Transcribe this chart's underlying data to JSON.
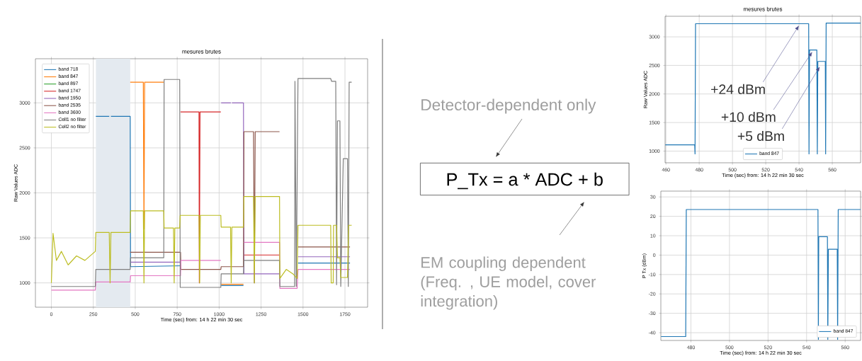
{
  "chart_data": [
    {
      "type": "line",
      "title": "mesures brutes",
      "xlabel": "Time (sec) from: 14 h 22 min 30 sec",
      "ylabel": "Raw Values ADC",
      "xlim": [
        -95,
        1885
      ],
      "ylim": [
        730,
        3490
      ],
      "xticks": [
        0,
        250,
        500,
        750,
        1000,
        1250,
        1500,
        1750
      ],
      "yticks": [
        1000,
        1500,
        2000,
        2500,
        3000
      ],
      "grid": true,
      "legend": "top left",
      "bands": [
        {
          "axis": "x",
          "from": 265,
          "to": 470,
          "color": "#e4eaf0"
        }
      ],
      "series": [
        {
          "name": "band 718",
          "color": "#1f77b4",
          "x": [
            265,
            345,
            350,
            355,
            470,
            472,
            770,
            772,
            1012,
            1145,
            1147,
            1470,
            1780
          ],
          "values": [
            2850,
            2850,
            null,
            2850,
            2850,
            1180,
            1190,
            null,
            970,
            970,
            null,
            1220,
            1220
          ]
        },
        {
          "name": "band 847",
          "color": "#ff7f0e",
          "x": [
            470,
            548,
            552,
            556,
            670,
            672,
            1012,
            1145
          ],
          "values": [
            3230,
            3230,
            1600,
            3230,
            3230,
            null,
            985,
            985
          ]
        },
        {
          "name": "band 897",
          "color": "#2ca02c"
        },
        {
          "name": "band 1747",
          "color": "#d62728",
          "x": [
            770,
            880,
            882,
            886,
            1010,
            1012,
            1148,
            1360
          ],
          "values": [
            2900,
            2900,
            1000,
            2900,
            2900,
            null,
            1310,
            1310
          ]
        },
        {
          "name": "band 1950",
          "color": "#9467bd",
          "x": [
            470,
            770,
            772,
            1012,
            1070,
            1072,
            1076,
            1145,
            1148,
            1360,
            1362,
            1470,
            1780
          ],
          "values": [
            1230,
            1230,
            null,
            3000,
            3000,
            null,
            3000,
            3000,
            1100,
            1100,
            null,
            1290,
            1290
          ]
        },
        {
          "name": "band 2535",
          "color": "#8c564b",
          "x": [
            470,
            770,
            772,
            1010,
            1012,
            1145,
            1148,
            1205,
            1210,
            1215,
            1360,
            1362,
            1470,
            1780
          ],
          "values": [
            1340,
            1340,
            1150,
            1150,
            1180,
            1180,
            2680,
            2680,
            1000,
            2680,
            2680,
            null,
            1400,
            1400
          ]
        },
        {
          "name": "band 3600",
          "color": "#e377c2",
          "x": [
            0,
            262,
            265,
            470,
            472,
            770,
            772,
            1010,
            1012,
            1148,
            1360,
            1362,
            1465,
            1470,
            1780
          ],
          "values": [
            920,
            920,
            1010,
            1010,
            1080,
            1080,
            1250,
            1250,
            null,
            1450,
            1450,
            940,
            940,
            1150,
            1150
          ]
        },
        {
          "name": "Cell1 no filter",
          "color": "#7f7f7f",
          "x": [
            0,
            262,
            265,
            470,
            472,
            670,
            672,
            765,
            768,
            1010,
            1012,
            1145,
            1148,
            1360,
            1362,
            1450,
            1452,
            1460,
            1470,
            1665,
            1670,
            1695,
            1700,
            1705,
            1720,
            1725,
            1740,
            1765,
            1770,
            1775,
            1790
          ],
          "values": [
            960,
            960,
            1150,
            1150,
            1280,
            1280,
            3260,
            3260,
            950,
            950,
            1100,
            1100,
            1250,
            1250,
            960,
            960,
            3240,
            960,
            3270,
            3270,
            3240,
            3240,
            980,
            2800,
            2800,
            960,
            2380,
            2380,
            960,
            3230,
            3230
          ]
        },
        {
          "name": "Cell2 no filter",
          "color": "#bcbd22",
          "x": [
            0,
            10,
            30,
            60,
            100,
            150,
            200,
            262,
            265,
            345,
            350,
            355,
            470,
            472,
            548,
            552,
            556,
            670,
            672,
            728,
            732,
            736,
            765,
            768,
            880,
            884,
            888,
            1010,
            1012,
            1068,
            1072,
            1076,
            1145,
            1148,
            1205,
            1210,
            1215,
            1360,
            1362,
            1400,
            1440,
            1465,
            1470,
            1665,
            1668,
            1680,
            1682,
            1700,
            1705,
            1720,
            1725,
            1765,
            1772,
            1790
          ],
          "values": [
            1000,
            1550,
            1250,
            1350,
            1200,
            1300,
            1250,
            1350,
            1560,
            1560,
            1000,
            1560,
            1560,
            1800,
            1800,
            1000,
            1800,
            1800,
            1610,
            1610,
            1000,
            1610,
            1610,
            1750,
            1750,
            1000,
            1750,
            1750,
            1620,
            1620,
            1000,
            1620,
            1620,
            1960,
            1960,
            1000,
            1960,
            1960,
            1050,
            1150,
            1100,
            1050,
            1640,
            1640,
            1000,
            1000,
            1640,
            1640,
            1280,
            1280,
            1060,
            1060,
            1640,
            1640
          ]
        }
      ]
    },
    {
      "type": "other",
      "annotations": [
        "Detector-dependent only",
        "P_Tx = a * ADC + b",
        "EM coupling dependent (Freq. , UE model, cover integration)"
      ]
    },
    {
      "type": "line",
      "title": "mesures brutes",
      "xlabel": "Time (sec) from: 14 h 22 min 30 sec",
      "ylabel": "Raw Values ADC",
      "xlim": [
        459.5,
        577
      ],
      "ylim": [
        795,
        3360
      ],
      "xticks": [
        460,
        480,
        500,
        520,
        540,
        560
      ],
      "yticks": [
        1000,
        1500,
        2000,
        2500,
        3000
      ],
      "grid": true,
      "legend": "bottom",
      "annotations": [
        {
          "text": "+24 dBm",
          "x": 540,
          "y": 3200
        },
        {
          "text": "+10 dBm",
          "x": 548,
          "y": 2740
        },
        {
          "text": "+5 dBm",
          "x": 552.5,
          "y": 2480
        }
      ],
      "series": [
        {
          "name": "band 847",
          "color": "#1f77b4",
          "x": [
            459.6,
            477.3,
            477.5,
            477.8,
            545.8,
            546,
            546.3,
            550.7,
            551,
            551.3,
            555.8,
            556,
            556.3,
            577
          ],
          "values": [
            1110,
            1110,
            950,
            3230,
            3230,
            950,
            2770,
            2770,
            950,
            2570,
            2570,
            950,
            3240,
            3240
          ]
        }
      ]
    },
    {
      "type": "line",
      "xlabel": "Time (sec) from: 14 h 22 min 30 sec",
      "ylabel": "P Tx (dBm)",
      "xlim": [
        464.4,
        568
      ],
      "ylim": [
        -44,
        33
      ],
      "xticks": [
        480,
        500,
        520,
        540,
        560
      ],
      "yticks": [
        -40,
        -30,
        -20,
        -10,
        0,
        10,
        20,
        30
      ],
      "grid": true,
      "legend": "bottom right",
      "series": [
        {
          "name": "band 847",
          "color": "#1f77b4",
          "x": [
            464.5,
            477.3,
            477.6,
            545.9,
            546.1,
            546.3,
            550.8,
            551.0,
            551.3,
            555.9,
            556.1,
            556.4,
            568
          ],
          "values": [
            -42,
            -42,
            23.5,
            23.5,
            -43.5,
            9.5,
            9.5,
            -43.5,
            3,
            3,
            -43.5,
            23.5,
            23.5
          ]
        }
      ]
    }
  ]
}
